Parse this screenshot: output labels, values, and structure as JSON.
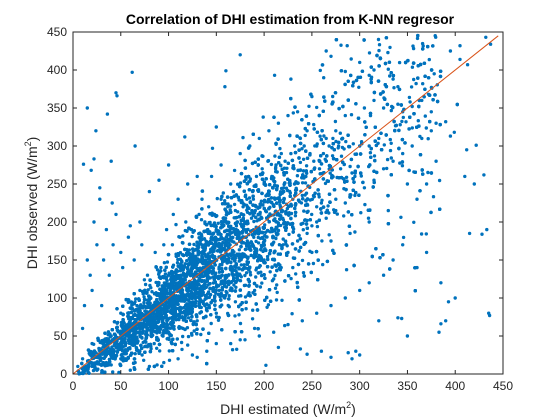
{
  "chart_data": {
    "type": "scatter",
    "title": "Correlation of DHI estimation from K-NN regresor",
    "xlabel": "DHI estimated (W/m",
    "ylabel": "DHI observed (W/m",
    "unit_exponent": "2",
    "unit_close": ")",
    "xlim": [
      0,
      450
    ],
    "ylim": [
      0,
      450
    ],
    "xticks": [
      0,
      50,
      100,
      150,
      200,
      250,
      300,
      350,
      400,
      450
    ],
    "yticks": [
      0,
      50,
      100,
      150,
      200,
      250,
      300,
      350,
      400,
      450
    ],
    "grid": false,
    "point_color": "#0072BD",
    "fit_line_color": "#D95319",
    "fit_line": [
      [
        0,
        0
      ],
      [
        445,
        445
      ]
    ],
    "points": [
      [
        62,
        397
      ],
      [
        45,
        370
      ],
      [
        46,
        366
      ],
      [
        36,
        342
      ],
      [
        24,
        320
      ],
      [
        15,
        350
      ],
      [
        22,
        283
      ],
      [
        11,
        276
      ],
      [
        28,
        245
      ],
      [
        41,
        225
      ],
      [
        19,
        268
      ],
      [
        40,
        280
      ],
      [
        65,
        300
      ],
      [
        117,
        312
      ],
      [
        100,
        275
      ],
      [
        150,
        325
      ],
      [
        159,
        378
      ],
      [
        175,
        420
      ],
      [
        160,
        399
      ],
      [
        146,
        297
      ],
      [
        199,
        338
      ],
      [
        211,
        393
      ],
      [
        228,
        388
      ],
      [
        250,
        365
      ],
      [
        265,
        425
      ],
      [
        270,
        418
      ],
      [
        287,
        432
      ],
      [
        300,
        410
      ],
      [
        285,
        398
      ],
      [
        310,
        393
      ],
      [
        315,
        400
      ],
      [
        330,
        401
      ],
      [
        335,
        388
      ],
      [
        340,
        378
      ],
      [
        366,
        382
      ],
      [
        378,
        395
      ],
      [
        395,
        425
      ],
      [
        405,
        414
      ],
      [
        405,
        432
      ],
      [
        413,
        407
      ],
      [
        432,
        443
      ],
      [
        437,
        434
      ],
      [
        390,
        332
      ],
      [
        399,
        318
      ],
      [
        412,
        295
      ],
      [
        422,
        301
      ],
      [
        430,
        262
      ],
      [
        428,
        184
      ],
      [
        433,
        190
      ],
      [
        375,
        345
      ],
      [
        352,
        364
      ],
      [
        340,
        355
      ],
      [
        320,
        310
      ],
      [
        310,
        300
      ],
      [
        300,
        300
      ],
      [
        295,
        260
      ],
      [
        290,
        273
      ],
      [
        280,
        270
      ],
      [
        275,
        230
      ],
      [
        260,
        225
      ],
      [
        255,
        220
      ],
      [
        250,
        195
      ],
      [
        240,
        235
      ],
      [
        230,
        230
      ],
      [
        220,
        170
      ],
      [
        210,
        180
      ],
      [
        200,
        250
      ],
      [
        190,
        212
      ],
      [
        180,
        180
      ],
      [
        170,
        215
      ],
      [
        160,
        160
      ],
      [
        150,
        190
      ],
      [
        140,
        170
      ],
      [
        130,
        150
      ],
      [
        120,
        140
      ],
      [
        110,
        110
      ],
      [
        100,
        130
      ],
      [
        90,
        120
      ],
      [
        80,
        100
      ],
      [
        70,
        110
      ],
      [
        60,
        70
      ],
      [
        50,
        80
      ],
      [
        40,
        50
      ],
      [
        30,
        30
      ],
      [
        20,
        40
      ],
      [
        10,
        20
      ],
      [
        5,
        10
      ],
      [
        12,
        8
      ],
      [
        25,
        5
      ],
      [
        40,
        12
      ],
      [
        55,
        20
      ],
      [
        70,
        30
      ],
      [
        85,
        40
      ],
      [
        100,
        55
      ],
      [
        115,
        60
      ],
      [
        130,
        70
      ],
      [
        150,
        80
      ],
      [
        170,
        95
      ],
      [
        190,
        110
      ],
      [
        210,
        125
      ],
      [
        230,
        140
      ],
      [
        250,
        160
      ],
      [
        270,
        175
      ],
      [
        290,
        185
      ],
      [
        310,
        200
      ],
      [
        330,
        215
      ],
      [
        350,
        250
      ],
      [
        360,
        230
      ],
      [
        370,
        250
      ],
      [
        380,
        280
      ],
      [
        395,
        313
      ],
      [
        410,
        260
      ],
      [
        420,
        250
      ],
      [
        385,
        120
      ],
      [
        393,
        95
      ],
      [
        400,
        100
      ],
      [
        415,
        185
      ],
      [
        435,
        80
      ],
      [
        436,
        77
      ],
      [
        390,
        70
      ],
      [
        385,
        66
      ],
      [
        383,
        55
      ],
      [
        350,
        50
      ],
      [
        344,
        73
      ],
      [
        340,
        74
      ],
      [
        320,
        70
      ],
      [
        300,
        25
      ],
      [
        296,
        30
      ],
      [
        292,
        20
      ],
      [
        288,
        28
      ],
      [
        260,
        30
      ],
      [
        270,
        22
      ],
      [
        245,
        26
      ],
      [
        238,
        33
      ],
      [
        215,
        35
      ],
      [
        190,
        60
      ],
      [
        175,
        45
      ],
      [
        167,
        32
      ],
      [
        150,
        40
      ],
      [
        130,
        22
      ],
      [
        120,
        38
      ],
      [
        101,
        18
      ],
      [
        88,
        12
      ],
      [
        74,
        18
      ],
      [
        60,
        5
      ],
      [
        48,
        2
      ],
      [
        30,
        90
      ],
      [
        20,
        110
      ],
      [
        15,
        150
      ],
      [
        25,
        170
      ],
      [
        35,
        190
      ],
      [
        45,
        210
      ],
      [
        50,
        160
      ],
      [
        60,
        195
      ],
      [
        70,
        200
      ],
      [
        80,
        240
      ],
      [
        90,
        255
      ],
      [
        95,
        170
      ],
      [
        105,
        210
      ],
      [
        110,
        230
      ],
      [
        120,
        250
      ],
      [
        130,
        260
      ],
      [
        135,
        230
      ],
      [
        145,
        260
      ],
      [
        155,
        275
      ],
      [
        165,
        250
      ],
      [
        175,
        290
      ],
      [
        185,
        300
      ],
      [
        195,
        310
      ],
      [
        205,
        320
      ],
      [
        215,
        330
      ],
      [
        225,
        340
      ],
      [
        235,
        345
      ],
      [
        245,
        320
      ],
      [
        255,
        300
      ],
      [
        265,
        310
      ],
      [
        275,
        320
      ],
      [
        285,
        340
      ],
      [
        305,
        350
      ],
      [
        315,
        360
      ],
      [
        325,
        350
      ],
      [
        345,
        345
      ],
      [
        355,
        352
      ],
      [
        365,
        360
      ],
      [
        372,
        368
      ],
      [
        150,
        110
      ],
      [
        160,
        120
      ],
      [
        175,
        130
      ],
      [
        185,
        140
      ],
      [
        200,
        150
      ],
      [
        215,
        145
      ],
      [
        225,
        160
      ],
      [
        235,
        175
      ],
      [
        245,
        185
      ],
      [
        255,
        200
      ],
      [
        265,
        205
      ],
      [
        275,
        215
      ],
      [
        285,
        225
      ],
      [
        295,
        235
      ],
      [
        305,
        245
      ],
      [
        315,
        255
      ],
      [
        325,
        270
      ],
      [
        335,
        280
      ],
      [
        345,
        290
      ],
      [
        355,
        300
      ],
      [
        365,
        310
      ],
      [
        375,
        320
      ],
      [
        380,
        330
      ],
      [
        360,
        140
      ],
      [
        370,
        160
      ],
      [
        345,
        170
      ],
      [
        335,
        150
      ],
      [
        325,
        130
      ],
      [
        310,
        120
      ],
      [
        300,
        110
      ],
      [
        285,
        100
      ],
      [
        270,
        90
      ],
      [
        255,
        80
      ],
      [
        240,
        70
      ],
      [
        225,
        65
      ],
      [
        210,
        55
      ],
      [
        195,
        50
      ],
      [
        180,
        45
      ],
      [
        165,
        40
      ],
      [
        140,
        30
      ],
      [
        125,
        25
      ],
      [
        110,
        20
      ],
      [
        95,
        15
      ],
      [
        80,
        10
      ],
      [
        65,
        15
      ],
      [
        50,
        20
      ],
      [
        35,
        15
      ],
      [
        20,
        10
      ],
      [
        10,
        60
      ],
      [
        12,
        90
      ],
      [
        18,
        130
      ],
      [
        22,
        200
      ],
      [
        28,
        230
      ],
      [
        32,
        150
      ],
      [
        38,
        130
      ],
      [
        42,
        170
      ],
      [
        52,
        140
      ],
      [
        58,
        180
      ],
      [
        64,
        150
      ],
      [
        72,
        170
      ],
      [
        78,
        130
      ],
      [
        86,
        160
      ],
      [
        92,
        140
      ],
      [
        98,
        190
      ],
      [
        104,
        170
      ],
      [
        112,
        180
      ],
      [
        118,
        200
      ],
      [
        124,
        190
      ],
      [
        132,
        210
      ],
      [
        138,
        200
      ],
      [
        142,
        220
      ],
      [
        148,
        210
      ],
      [
        155,
        230
      ],
      [
        162,
        220
      ],
      [
        168,
        240
      ],
      [
        172,
        200
      ],
      [
        178,
        220
      ],
      [
        182,
        230
      ],
      [
        188,
        240
      ],
      [
        192,
        260
      ],
      [
        198,
        270
      ],
      [
        204,
        280
      ],
      [
        208,
        260
      ],
      [
        212,
        270
      ],
      [
        218,
        290
      ],
      [
        222,
        280
      ],
      [
        228,
        290
      ],
      [
        232,
        300
      ],
      [
        238,
        310
      ],
      [
        242,
        300
      ],
      [
        248,
        290
      ],
      [
        252,
        280
      ],
      [
        258,
        270
      ],
      [
        262,
        290
      ],
      [
        268,
        300
      ],
      [
        272,
        310
      ],
      [
        278,
        300
      ],
      [
        282,
        310
      ]
    ]
  }
}
